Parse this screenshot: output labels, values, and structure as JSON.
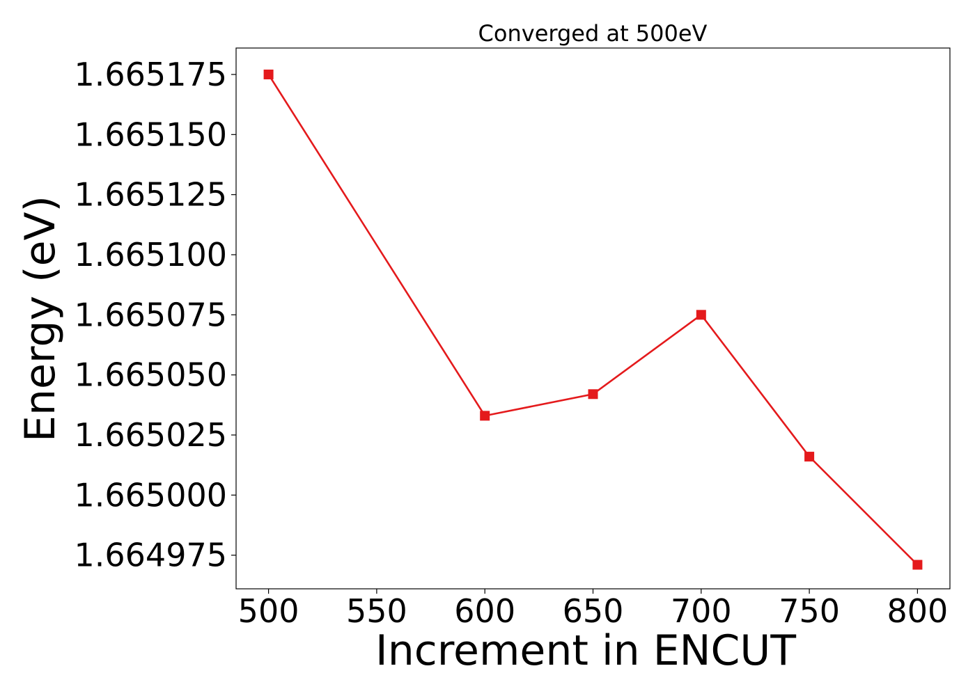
{
  "chart_data": {
    "type": "line",
    "title": "Converged at 500eV",
    "xlabel": "Increment in ENCUT",
    "ylabel": "Energy (eV)",
    "x": [
      500,
      600,
      650,
      700,
      750,
      800
    ],
    "xticks": [
      500,
      550,
      600,
      650,
      700,
      750,
      800
    ],
    "xtick_labels": [
      "500",
      "550",
      "600",
      "650",
      "700",
      "750",
      "800"
    ],
    "yticks": [
      1.664975,
      1.665,
      1.665025,
      1.66505,
      1.665075,
      1.6651,
      1.665125,
      1.66515,
      1.665175
    ],
    "ytick_labels": [
      "1.664975",
      "1.665000",
      "1.665025",
      "1.665050",
      "1.665075",
      "1.665100",
      "1.665125",
      "1.665150",
      "1.665175"
    ],
    "xlim": [
      485,
      815
    ],
    "ylim": [
      1.664961,
      1.665186
    ],
    "series": [
      {
        "values": [
          1.665175,
          1.665033,
          1.665042,
          1.665075,
          1.665016,
          1.664971
        ],
        "color": "#e41a1c",
        "marker": "square"
      }
    ],
    "grid": false,
    "legend": "none"
  }
}
